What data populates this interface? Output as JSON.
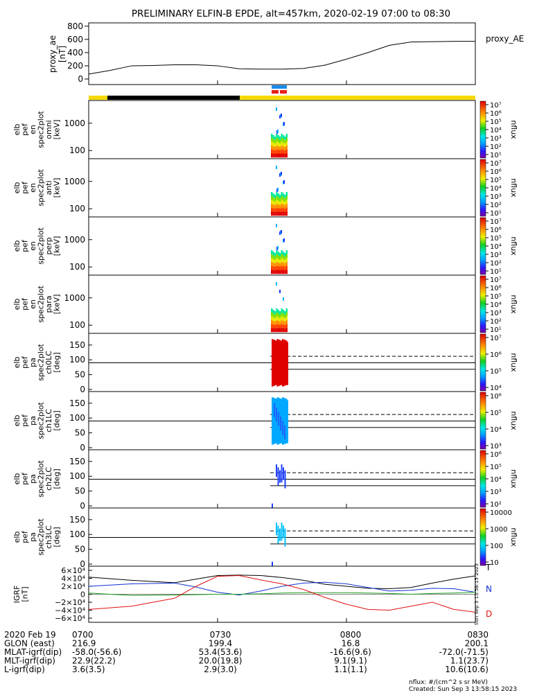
{
  "title": "PRELIMINARY ELFIN-B EPDE, alt=457km, 2020-02-19 07:00 to 08:30",
  "colors": {
    "sunlit": "#f5d800",
    "eclipse": "#000000",
    "sci_blue": "#1a8ce8",
    "sci_red": "#e8201a"
  },
  "chart_data": [
    {
      "type": "line",
      "panel": "proxy_ae",
      "ylabel": [
        "proxy_ae",
        "[nT]"
      ],
      "yticks": [
        "800",
        "600",
        "400",
        "200",
        "0"
      ],
      "ylim": [
        0,
        850
      ],
      "legend": "proxy_AE",
      "x_minutes": [
        0,
        5,
        10,
        15,
        20,
        25,
        30,
        35,
        40,
        45,
        50,
        55,
        60,
        65,
        70,
        75,
        80,
        85,
        90
      ],
      "values": [
        75,
        130,
        200,
        205,
        215,
        215,
        200,
        155,
        150,
        150,
        160,
        210,
        300,
        400,
        510,
        560,
        565,
        570,
        570
      ]
    },
    {
      "type": "heatmap",
      "panel": "spec_omni",
      "ylabel": [
        "elb",
        "pef",
        "en",
        "spec2plot",
        "omni",
        "[keV]"
      ],
      "yticks": [
        "1000",
        "100"
      ],
      "yscale": "log",
      "cbar_label": "nflux",
      "cbar_ticks": [
        "10⁷",
        "10⁶",
        "10⁵",
        "10⁴",
        "10³",
        "10²",
        "10¹"
      ]
    },
    {
      "type": "heatmap",
      "panel": "spec_anti",
      "ylabel": [
        "elb",
        "pef",
        "en",
        "spec2plot",
        "anti",
        "[keV]"
      ],
      "yticks": [
        "1000",
        "100"
      ],
      "yscale": "log",
      "cbar_label": "nflux",
      "cbar_ticks": [
        "10⁷",
        "10⁶",
        "10⁵",
        "10⁴",
        "10³",
        "10²",
        "10¹"
      ]
    },
    {
      "type": "heatmap",
      "panel": "spec_perp",
      "ylabel": [
        "elb",
        "pef",
        "en",
        "spec2plot",
        "perp",
        "[keV]"
      ],
      "yticks": [
        "1000",
        "100"
      ],
      "yscale": "log",
      "cbar_label": "nflux",
      "cbar_ticks": [
        "10⁷",
        "10⁶",
        "10⁵",
        "10⁴",
        "10³",
        "10²",
        "10¹"
      ]
    },
    {
      "type": "heatmap",
      "panel": "spec_para",
      "ylabel": [
        "elb",
        "pef",
        "en",
        "spec2plot",
        "para",
        "[keV]"
      ],
      "yticks": [
        "1000",
        "100"
      ],
      "yscale": "log",
      "cbar_label": "nflux",
      "cbar_ticks": [
        "10⁷",
        "10⁶",
        "10⁵",
        "10⁴",
        "10³",
        "10²",
        "10¹"
      ]
    },
    {
      "type": "heatmap",
      "panel": "pa_ch0",
      "ylabel": [
        "elb",
        "pef",
        "pa",
        "spec2plot",
        "ch0LC",
        "[deg]"
      ],
      "yticks": [
        "150",
        "100",
        "50",
        "0"
      ],
      "ylim": [
        0,
        180
      ],
      "cbar_label": "nflux",
      "cbar_ticks": [
        "10⁷",
        "10⁶",
        "10⁵",
        "10⁴"
      ]
    },
    {
      "type": "heatmap",
      "panel": "pa_ch1",
      "ylabel": [
        "elb",
        "pef",
        "pa",
        "spec2plot",
        "ch1LC",
        "[deg]"
      ],
      "yticks": [
        "150",
        "100",
        "50",
        "0"
      ],
      "ylim": [
        0,
        180
      ],
      "cbar_label": "nflux",
      "cbar_ticks": [
        "10⁶",
        "10⁵",
        "10⁴",
        "10³"
      ]
    },
    {
      "type": "heatmap",
      "panel": "pa_ch2",
      "ylabel": [
        "elb",
        "pef",
        "pa",
        "spec2plot",
        "ch2LC",
        "[deg]"
      ],
      "yticks": [
        "150",
        "100",
        "50",
        "0"
      ],
      "ylim": [
        0,
        180
      ],
      "cbar_label": "nflux",
      "cbar_ticks": [
        "10⁶",
        "10⁵",
        "10⁴",
        "10³",
        "10²"
      ]
    },
    {
      "type": "heatmap",
      "panel": "pa_ch3",
      "ylabel": [
        "elb",
        "pef",
        "pa",
        "spec2plot",
        "ch3LC",
        "[deg]"
      ],
      "yticks": [
        "150",
        "100",
        "50",
        "0"
      ],
      "ylim": [
        0,
        180
      ],
      "cbar_label": "nflux",
      "cbar_ticks": [
        "10000",
        "1000",
        "100",
        "10"
      ]
    },
    {
      "type": "line",
      "panel": "igrf",
      "ylabel": [
        "IGRF",
        "[nT]"
      ],
      "yticks": [
        "6×10⁴",
        "4×10⁴",
        "2×10⁴",
        "0",
        "−2×10⁴",
        "−4×10⁴",
        "−6×10⁴"
      ],
      "ylim": [
        -60000,
        60000
      ],
      "x_minutes": [
        0,
        10,
        20,
        25,
        30,
        35,
        40,
        45,
        50,
        55,
        60,
        65,
        70,
        75,
        80,
        85,
        90
      ],
      "series": [
        {
          "name": "T",
          "color": "#000000",
          "values": [
            43000,
            35000,
            29000,
            38000,
            47000,
            48000,
            47000,
            42000,
            35000,
            25000,
            20000,
            15000,
            14000,
            17000,
            28000,
            38000,
            46000
          ]
        },
        {
          "name": "N",
          "color": "#1030d0",
          "values": [
            20000,
            26000,
            28000,
            18000,
            5000,
            -2000,
            8000,
            20000,
            28000,
            30000,
            26000,
            17000,
            8000,
            10000,
            15000,
            14000,
            5000
          ]
        },
        {
          "name": "",
          "color": "#20a020",
          "values": [
            3000,
            -3000,
            -2000,
            -1000,
            0,
            0,
            1000,
            3000,
            4000,
            4000,
            4000,
            3000,
            2000,
            0,
            2000,
            3000,
            5000
          ]
        },
        {
          "name": "D",
          "color": "#e01010",
          "values": [
            -38000,
            -30000,
            -10000,
            20000,
            45000,
            47000,
            36000,
            26000,
            12000,
            -8000,
            -25000,
            -38000,
            -40000,
            -30000,
            -20000,
            -38000,
            -45000
          ]
        }
      ],
      "side_text": "Sun Sep  3 13:58:15 2023"
    }
  ],
  "xaxis": {
    "tick_labels": [
      "0700",
      "0730",
      "0800",
      "0830"
    ],
    "rows": [
      {
        "label": "2020 Feb 19",
        "values": [
          "0700",
          "0730",
          "0800",
          "0830"
        ]
      },
      {
        "label": "GLON (east)",
        "values": [
          "216.9",
          "199.4",
          "16.8",
          "200.1"
        ]
      },
      {
        "label": "MLAT-igrf(dip)",
        "values": [
          "-58.0(-56.6)",
          "53.4(53.6)",
          "-16.6(9.6)",
          "-72.0(-71.5)"
        ]
      },
      {
        "label": "MLT-igrf(dip)",
        "values": [
          "22.9(22.2)",
          "20.0(19.8)",
          "9.1(9.1)",
          "1.1(23.7)"
        ]
      },
      {
        "label": "L-igrf(dip)",
        "values": [
          "3.6(3.5)",
          "2.9(3.0)",
          "1.1(1.1)",
          "10.6(10.6)"
        ]
      }
    ]
  },
  "footer": {
    "units": "nflux: #/(cm^2 s sr MeV)",
    "created": "Created: Sun Sep  3 13:58:15 2023"
  }
}
